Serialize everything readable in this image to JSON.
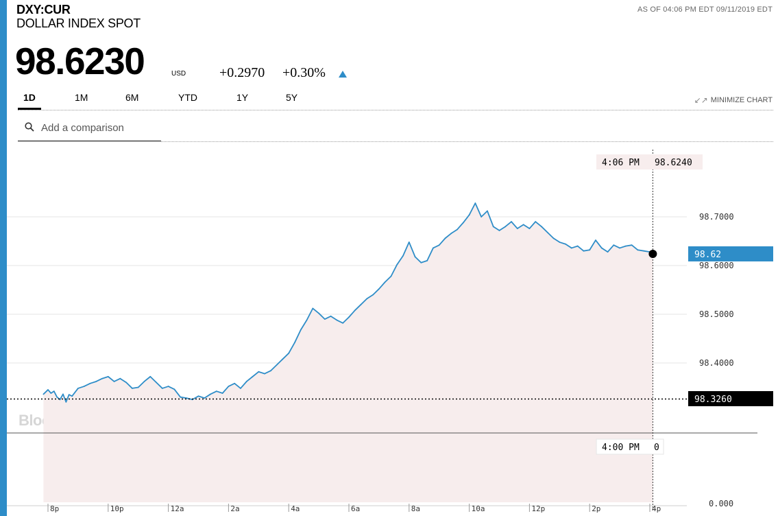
{
  "header": {
    "ticker": "DXY:CUR",
    "name": "DOLLAR INDEX SPOT",
    "as_of": "AS OF 04:06 PM EDT 09/11/2019 EDT",
    "price": "98.6230",
    "currency": "USD",
    "change": "+0.2970",
    "change_pct": "+0.30%",
    "direction_icon": "triangle-up-icon"
  },
  "tabs": [
    {
      "label": "1D",
      "active": true
    },
    {
      "label": "1M",
      "active": false
    },
    {
      "label": "6M",
      "active": false
    },
    {
      "label": "YTD",
      "active": false
    },
    {
      "label": "1Y",
      "active": false
    },
    {
      "label": "5Y",
      "active": false
    }
  ],
  "minimize_label": "MINIMIZE CHART",
  "search": {
    "placeholder": "Add a comparison"
  },
  "colors": {
    "accent": "#2e8dc8",
    "line": "#2e8dc8",
    "below_prev_close": "#e0322e",
    "fill": "#f7eded",
    "current_tag": "#2e8dc8",
    "prev_close_tag": "#000000"
  },
  "watermark": "BloombergMarkets",
  "chart_data": {
    "type": "line",
    "x_ticks": [
      "8p",
      "10p",
      "12a",
      "2a",
      "4a",
      "6a",
      "8a",
      "10a",
      "12p",
      "2p",
      "4p"
    ],
    "y_ticks": [
      "98.7000",
      "98.6000",
      "98.5000",
      "98.4000"
    ],
    "volume_axis_label": "0.000",
    "ylim": [
      98.27,
      98.76
    ],
    "previous_close": 98.326,
    "previous_close_label": "98.3260",
    "current_value_label": "98.62",
    "crosshair_top": {
      "time": "4:06 PM",
      "value": "98.6240"
    },
    "crosshair_bottom": {
      "time": "4:00 PM",
      "value": "0"
    },
    "series": [
      {
        "x_hours_from_8p": [
          -0.15,
          0.0,
          0.1,
          0.2,
          0.3,
          0.4,
          0.5,
          0.6,
          0.7,
          0.8,
          1.0,
          1.2,
          1.4,
          1.6,
          1.8,
          2.0,
          2.2,
          2.4,
          2.6,
          2.8,
          3.0,
          3.2,
          3.4,
          3.6,
          3.8,
          4.0,
          4.2,
          4.4,
          4.6,
          4.8,
          5.0,
          5.2,
          5.4,
          5.6,
          5.8,
          6.0,
          6.2,
          6.4,
          6.6,
          6.8,
          7.0,
          7.2,
          7.4,
          7.6,
          7.8,
          8.0,
          8.2,
          8.4,
          8.6,
          8.8,
          9.0,
          9.2,
          9.4,
          9.6,
          9.8,
          10.0,
          10.2,
          10.4,
          10.6,
          10.8,
          11.0,
          11.2,
          11.4,
          11.6,
          11.8,
          12.0,
          12.2,
          12.4,
          12.6,
          12.8,
          13.0,
          13.2,
          13.4,
          13.6,
          13.8,
          14.0,
          14.2,
          14.4,
          14.6,
          14.8,
          15.0,
          15.2,
          15.4,
          15.6,
          15.8,
          16.0,
          16.2,
          16.4,
          16.6,
          16.8,
          17.0,
          17.2,
          17.4,
          17.6,
          17.8,
          18.0,
          18.2,
          18.4,
          18.6,
          18.8,
          19.0,
          19.2,
          19.4,
          19.6,
          19.8,
          20.0,
          20.1
        ],
        "y": [
          98.336,
          98.345,
          98.338,
          98.342,
          98.33,
          98.325,
          98.336,
          98.32,
          98.335,
          98.332,
          98.348,
          98.352,
          98.358,
          98.362,
          98.368,
          98.372,
          98.362,
          98.368,
          98.36,
          98.348,
          98.35,
          98.362,
          98.372,
          98.36,
          98.348,
          98.352,
          98.346,
          98.33,
          98.328,
          98.325,
          98.332,
          98.328,
          98.336,
          98.342,
          98.338,
          98.352,
          98.358,
          98.348,
          98.362,
          98.372,
          98.382,
          98.378,
          98.384,
          98.396,
          98.408,
          98.42,
          98.442,
          98.468,
          98.488,
          98.512,
          98.502,
          98.49,
          98.496,
          98.488,
          98.482,
          98.494,
          98.508,
          98.52,
          98.532,
          98.54,
          98.552,
          98.566,
          98.578,
          98.602,
          98.62,
          98.648,
          98.618,
          98.606,
          98.61,
          98.636,
          98.642,
          98.656,
          98.666,
          98.674,
          98.688,
          98.704,
          98.728,
          98.7,
          98.712,
          98.68,
          98.672,
          98.68,
          98.69,
          98.676,
          98.684,
          98.676,
          98.69,
          98.68,
          98.668,
          98.656,
          98.648,
          98.644,
          98.636,
          98.64,
          98.63,
          98.632,
          98.652,
          98.636,
          98.628,
          98.642,
          98.636,
          98.64,
          98.642,
          98.632,
          98.63,
          98.628,
          98.624
        ]
      }
    ]
  }
}
